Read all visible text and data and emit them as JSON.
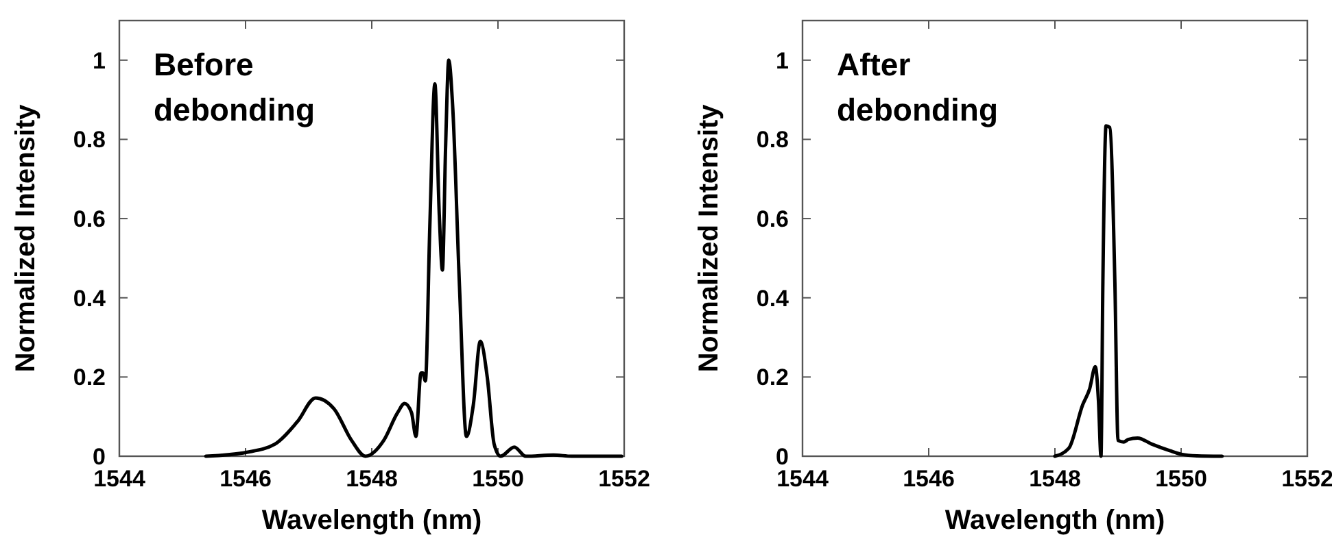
{
  "chart_data": [
    {
      "type": "line",
      "xlabel": "Wavelength (nm)",
      "ylabel": "Normalized Intensity",
      "annotations": [
        "Before debonding"
      ],
      "xlim": [
        1544,
        1552
      ],
      "ylim": [
        0,
        1.1
      ],
      "xticks": [
        1544,
        1546,
        1548,
        1550,
        1552
      ],
      "yticks": [
        0,
        0.2,
        0.4,
        0.6,
        0.8,
        1
      ],
      "grid": false,
      "series": [
        {
          "color": "#000000",
          "x": [
            1545.37,
            1546.02,
            1546.46,
            1546.82,
            1547.11,
            1547.4,
            1547.68,
            1547.9,
            1548.19,
            1548.41,
            1548.52,
            1548.63,
            1548.7,
            1548.78,
            1548.81,
            1548.85,
            1548.92,
            1549.0,
            1549.07,
            1549.12,
            1549.17,
            1549.22,
            1549.28,
            1549.39,
            1549.5,
            1549.61,
            1549.72,
            1549.83,
            1549.94,
            1550.04,
            1550.26,
            1550.44,
            1550.88,
            1551.17,
            1551.96
          ],
          "values": [
            0,
            0.01,
            0.03,
            0.087,
            0.147,
            0.12,
            0.04,
            0,
            0.04,
            0.11,
            0.133,
            0.11,
            0.05,
            0.21,
            0.21,
            0.19,
            0.58,
            0.94,
            0.61,
            0.47,
            0.78,
            1.0,
            0.89,
            0.43,
            0.05,
            0.13,
            0.29,
            0.2,
            0.03,
            0,
            0.023,
            0,
            0.003,
            0,
            0
          ]
        }
      ]
    },
    {
      "type": "line",
      "xlabel": "Wavelength (nm)",
      "ylabel": "Normalized Intensity",
      "annotations": [
        "After debonding"
      ],
      "xlim": [
        1544,
        1552
      ],
      "ylim": [
        0,
        1.1
      ],
      "xticks": [
        1544,
        1546,
        1548,
        1550,
        1552
      ],
      "yticks": [
        0,
        0.2,
        0.4,
        0.6,
        0.8,
        1
      ],
      "grid": false,
      "series": [
        {
          "color": "#000000",
          "x": [
            1548.0,
            1548.22,
            1548.44,
            1548.55,
            1548.64,
            1548.69,
            1548.73,
            1548.76,
            1548.81,
            1548.87,
            1548.95,
            1549.0,
            1549.09,
            1549.16,
            1549.31,
            1549.53,
            1549.82,
            1550.0,
            1550.25,
            1550.65
          ],
          "values": [
            0,
            0.02,
            0.13,
            0.17,
            0.226,
            0.14,
            0,
            0.44,
            0.834,
            0.83,
            0.44,
            0.04,
            0.036,
            0.042,
            0.046,
            0.031,
            0.014,
            0.005,
            0.001,
            0
          ]
        }
      ]
    }
  ]
}
